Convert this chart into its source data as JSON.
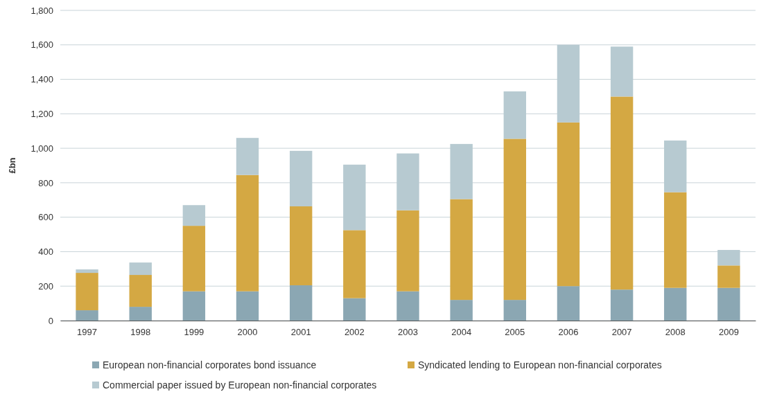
{
  "chart_data": {
    "type": "bar",
    "ylabel": "£bn",
    "categories": [
      "1997",
      "1998",
      "1999",
      "2000",
      "2001",
      "2002",
      "2003",
      "2004",
      "2005",
      "2006",
      "2007",
      "2008",
      "2009"
    ],
    "series": [
      {
        "name": "European non-financial corporates bond issuance",
        "color": "#8ba7b3",
        "values": [
          60,
          80,
          170,
          170,
          205,
          130,
          170,
          120,
          120,
          200,
          180,
          190,
          190
        ]
      },
      {
        "name": "Syndicated lending to European non-financial corporates",
        "color": "#d4a843",
        "values": [
          217,
          185,
          380,
          675,
          458,
          395,
          470,
          585,
          935,
          950,
          1120,
          555,
          130
        ]
      },
      {
        "name": "Commercial paper issued by European non-financial corporates",
        "color": "#b7cad1",
        "values": [
          20,
          72,
          120,
          215,
          322,
          380,
          330,
          320,
          275,
          450,
          290,
          300,
          90
        ]
      }
    ],
    "stacked": true,
    "ylim": [
      0,
      1800
    ],
    "yticks": [
      {
        "value": 0,
        "label": "0"
      },
      {
        "value": 200,
        "label": "200"
      },
      {
        "value": 400,
        "label": "400"
      },
      {
        "value": 600,
        "label": "600"
      },
      {
        "value": 800,
        "label": "800"
      },
      {
        "value": 1000,
        "label": "1,000"
      },
      {
        "value": 1200,
        "label": "1,200"
      },
      {
        "value": 1400,
        "label": "1,400"
      },
      {
        "value": 1600,
        "label": "1,600"
      },
      {
        "value": 1800,
        "label": "1,800"
      }
    ],
    "grid": "y",
    "legend": "bottom"
  }
}
